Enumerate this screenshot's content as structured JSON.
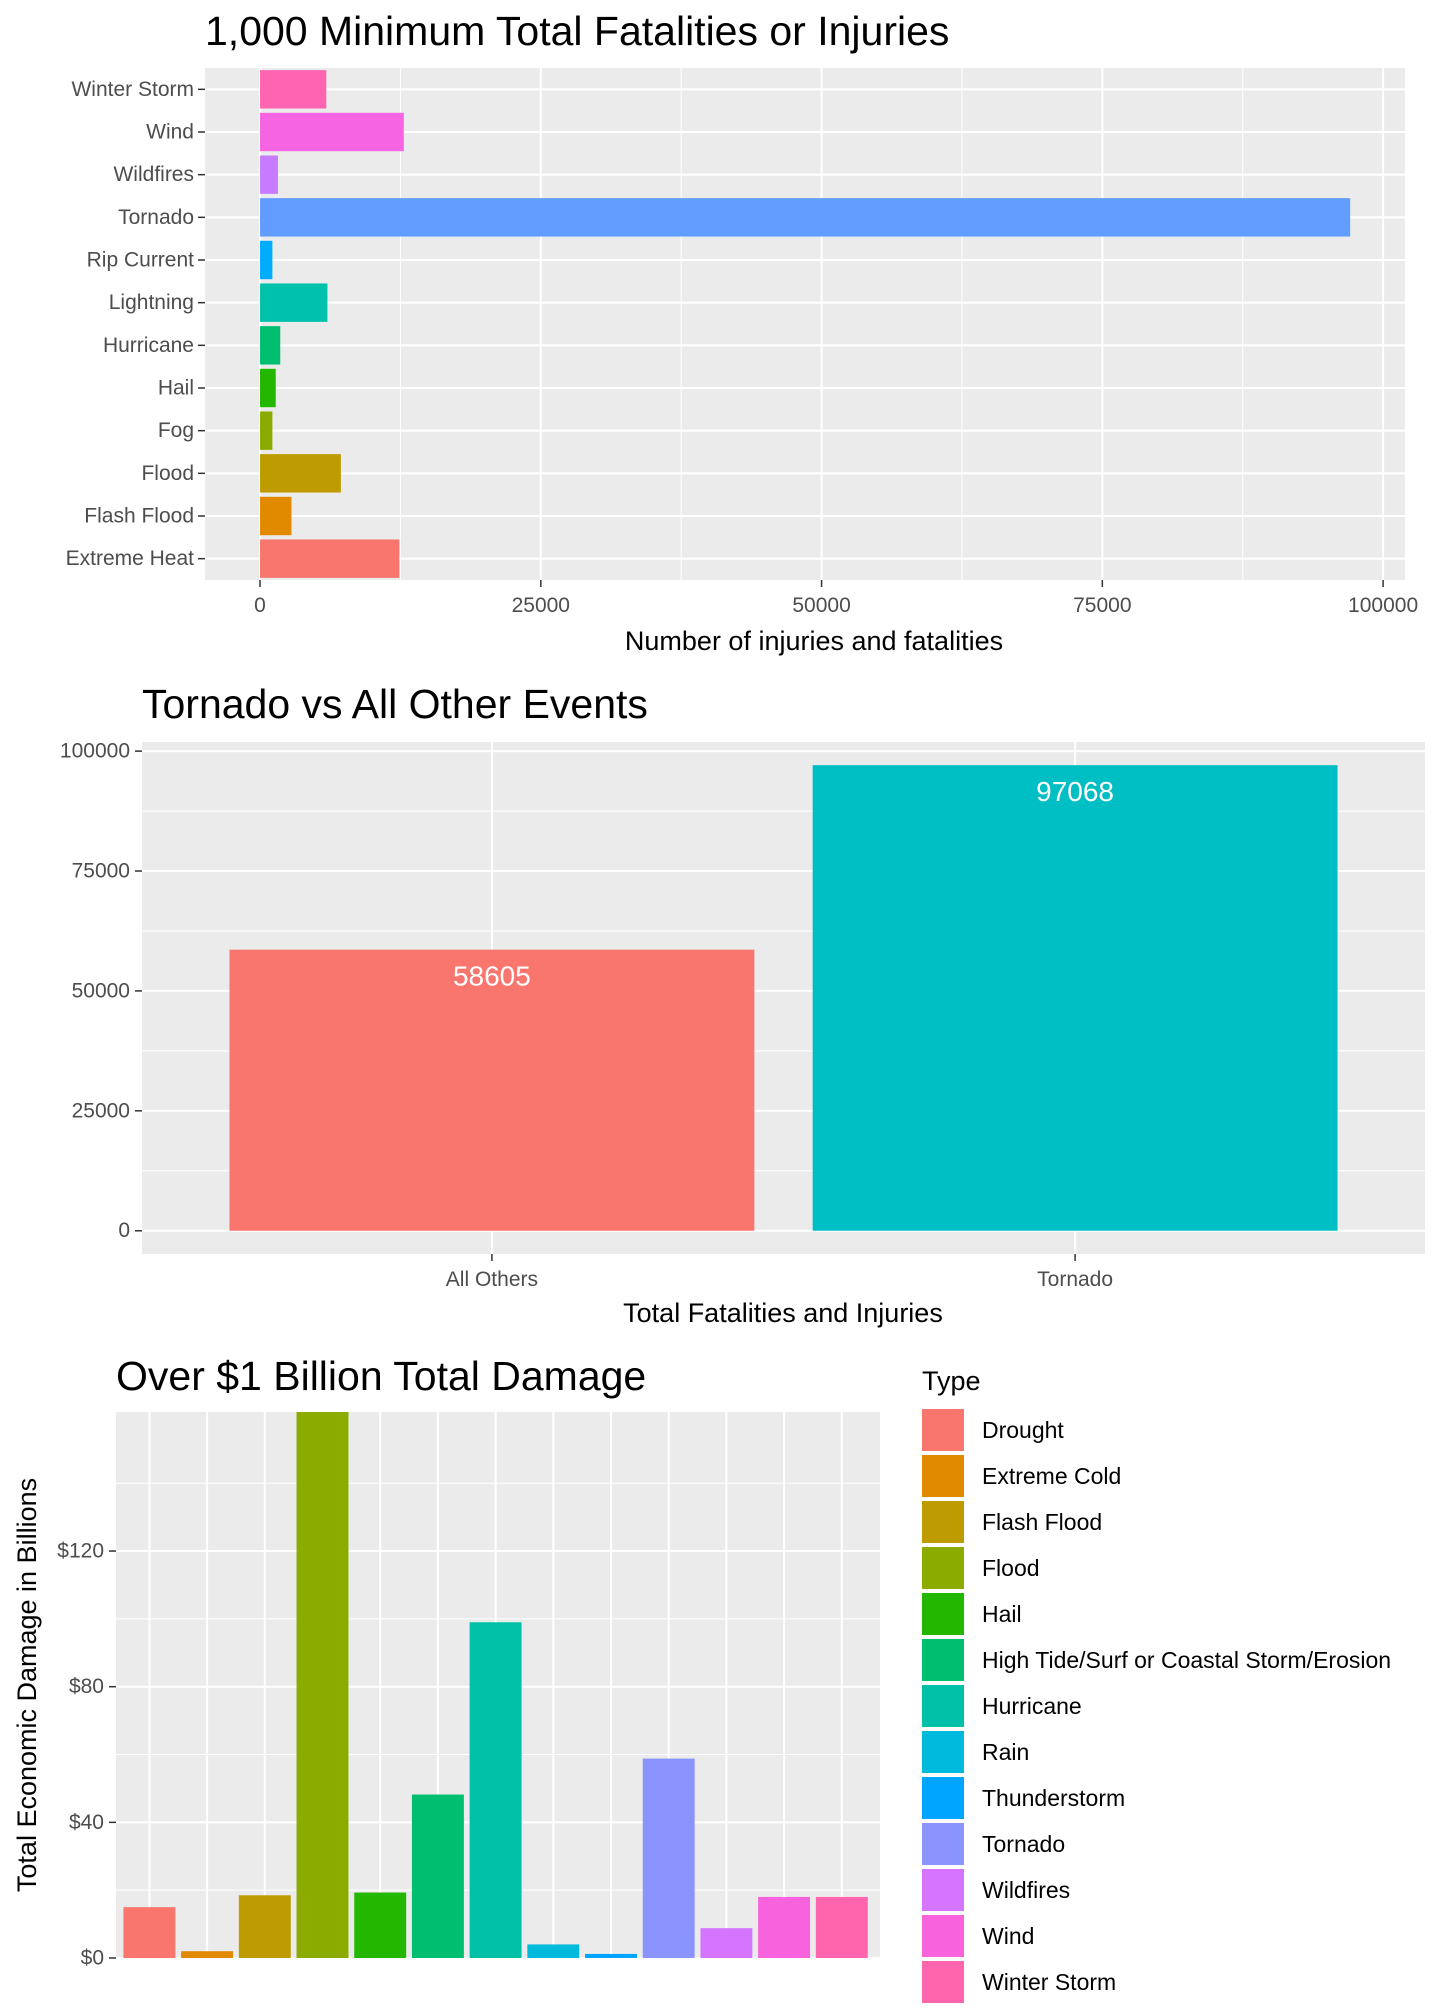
{
  "chart_data": [
    {
      "type": "bar",
      "orientation": "horizontal",
      "title": "1,000 Minimum Total Fatalities or Injuries",
      "xlabel": "Number of injuries and fatalities",
      "ylabel": "",
      "categories": [
        "Extreme Heat",
        "Flash Flood",
        "Flood",
        "Fog",
        "Hail",
        "Hurricane",
        "Lightning",
        "Rip Current",
        "Tornado",
        "Wildfires",
        "Wind",
        "Winter Storm"
      ],
      "values": [
        12400,
        2800,
        7200,
        1100,
        1400,
        1800,
        6000,
        1100,
        97068,
        1600,
        12800,
        5900
      ],
      "colors": [
        "#F8766D",
        "#E18A00",
        "#BE9C00",
        "#8CAB00",
        "#24B700",
        "#00BE70",
        "#00C1AB",
        "#00ACFC",
        "#619CFF",
        "#C77CFF",
        "#F564E3",
        "#FF64B0"
      ],
      "xlim": [
        -4900,
        101950
      ],
      "xticks": [
        0,
        25000,
        50000,
        75000,
        100000
      ],
      "xtick_labels": [
        "0",
        "25000",
        "50000",
        "75000",
        "100000"
      ],
      "grid": true,
      "legend": "none"
    },
    {
      "type": "bar",
      "title": "Tornado vs All Other Events",
      "xlabel": "Total Fatalities and Injuries",
      "ylabel": "",
      "categories": [
        "All Others",
        "Tornado"
      ],
      "values": [
        58605,
        97068
      ],
      "data_labels": [
        "58605",
        "97068"
      ],
      "colors": [
        "#F8766D",
        "#00BFC4"
      ],
      "ylim": [
        -4850,
        101900
      ],
      "yticks": [
        0,
        25000,
        50000,
        75000,
        100000
      ],
      "ytick_labels": [
        "0",
        "25000",
        "50000",
        "75000",
        "100000"
      ],
      "grid": true,
      "legend": "none"
    },
    {
      "type": "bar",
      "title": "Over $1 Billion Total Damage",
      "xlabel": "",
      "ylabel": "Total Economic Damage in Billions",
      "categories": [
        "Drought",
        "Extreme Cold",
        "Flash Flood",
        "Flood",
        "Hail",
        "High Tide/Surf or Coastal Storm/Erosion",
        "Hurricane",
        "Rain",
        "Thunderstorm",
        "Tornado",
        "Wildfires",
        "Wind",
        "Winter Storm"
      ],
      "values": [
        15,
        2,
        18.5,
        161,
        19.3,
        48.2,
        99,
        4,
        1.2,
        58.8,
        8.8,
        18,
        18
      ],
      "colors": [
        "#F8766D",
        "#E18A00",
        "#BE9C00",
        "#8CAB00",
        "#24B700",
        "#00BE70",
        "#00C1A8",
        "#00BADE",
        "#00A5FF",
        "#8B93FF",
        "#D575FE",
        "#F962DD",
        "#FF65AC"
      ],
      "ylim": [
        0,
        161
      ],
      "yticks": [
        0,
        40,
        80,
        120
      ],
      "ytick_labels": [
        "$0",
        "$40",
        "$80",
        "$120"
      ],
      "grid": true,
      "legend": "right",
      "legend_title": "Type"
    }
  ]
}
